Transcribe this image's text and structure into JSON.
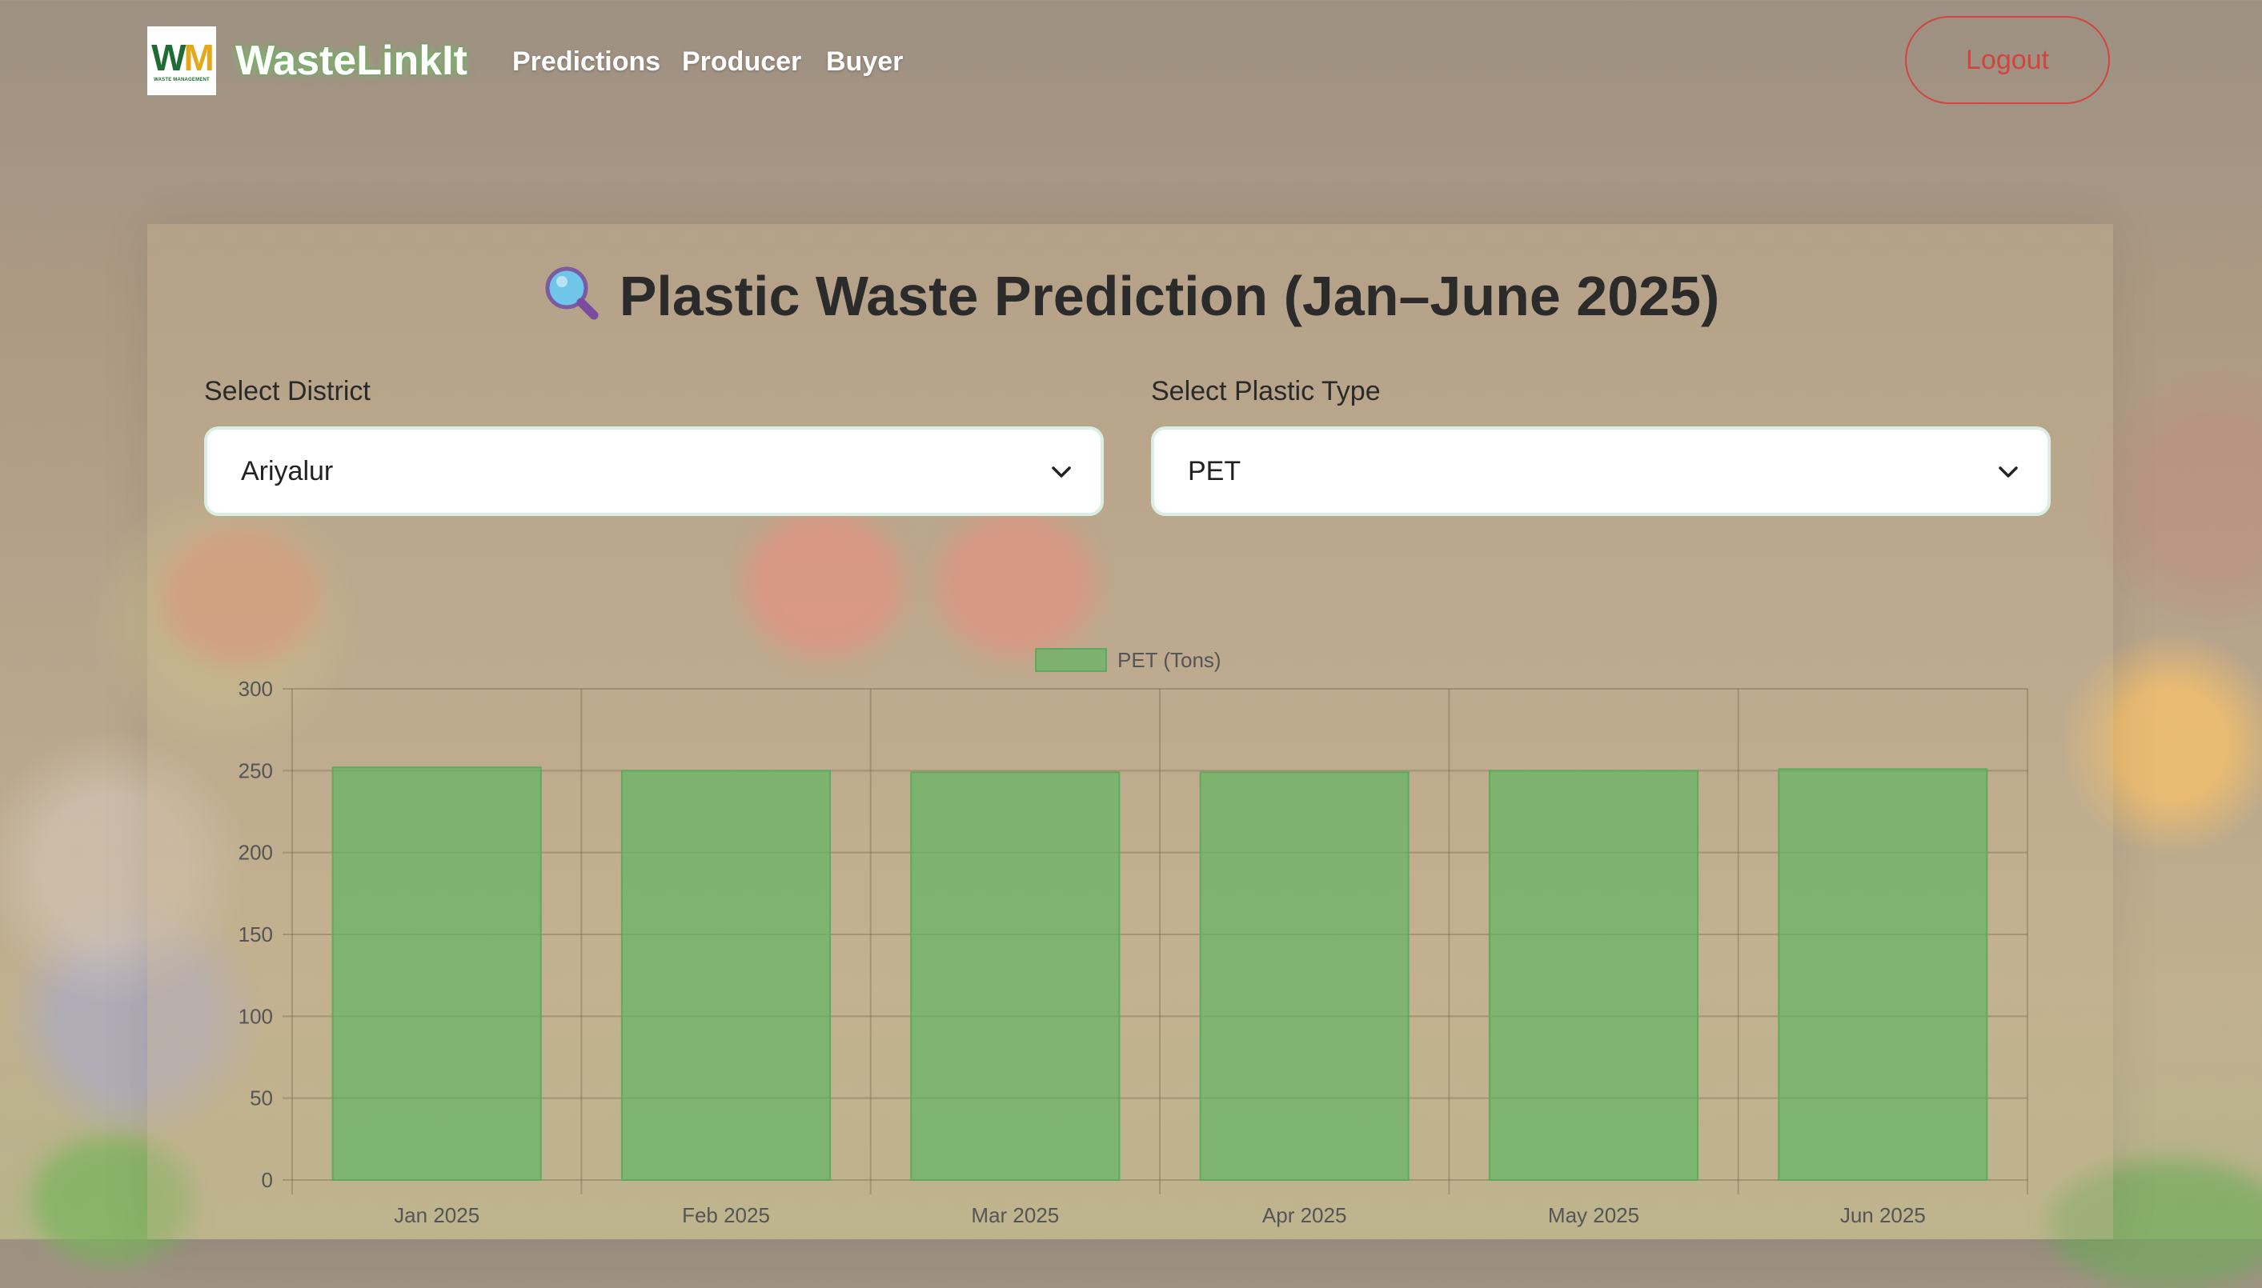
{
  "nav": {
    "brand": "WasteLinkIt",
    "logo_text": {
      "w": "W",
      "m": "M",
      "sub": "WASTE MANAGEMENT"
    },
    "links": [
      "Predictions",
      "Producer",
      "Buyer"
    ],
    "logout_label": "Logout"
  },
  "page": {
    "title": "Plastic Waste Prediction (Jan–June 2025)",
    "title_icon": "magnifier-icon"
  },
  "filters": {
    "district_label": "Select District",
    "district_value": "Ariyalur",
    "plastic_label": "Select Plastic Type",
    "plastic_value": "PET"
  },
  "colors": {
    "accent_green": "#6fb36f",
    "logout_red": "#d2453f",
    "input_border": "#d9efe4"
  },
  "chart_data": {
    "type": "bar",
    "categories": [
      "Jan 2025",
      "Feb 2025",
      "Mar 2025",
      "Apr 2025",
      "May 2025",
      "Jun 2025"
    ],
    "series": [
      {
        "name": "PET (Tons)",
        "values": [
          252,
          250,
          249,
          249,
          250,
          251
        ]
      }
    ],
    "ylim": [
      0,
      300
    ],
    "yticks": [
      0,
      50,
      100,
      150,
      200,
      250,
      300
    ],
    "grid": true,
    "legend": "top-center"
  }
}
